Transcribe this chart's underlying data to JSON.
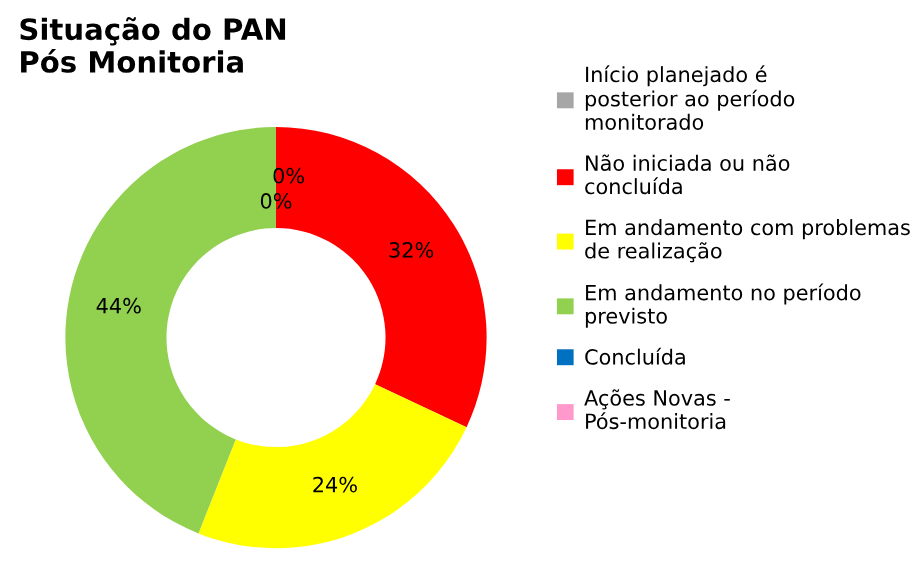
{
  "chart_data": {
    "type": "donut",
    "title": "Situação do PAN Pós Monitoria",
    "categories": [
      "Início planejado é posterior ao período monitorado",
      "Não iniciada ou não concluída",
      "Em andamento com problemas de realização",
      "Em andamento no período previsto",
      "Concluída",
      "Ações Novas - Pós-monitoria"
    ],
    "values": [
      0,
      32,
      24,
      44,
      0,
      0
    ],
    "colors": [
      "#a6a6a6",
      "#ff0000",
      "#ffff00",
      "#92d050",
      "#0070c0",
      "#ff99cc"
    ],
    "value_labels": [
      "0%",
      "32%",
      "24%",
      "44%",
      "0%",
      null
    ],
    "legend": "right"
  }
}
